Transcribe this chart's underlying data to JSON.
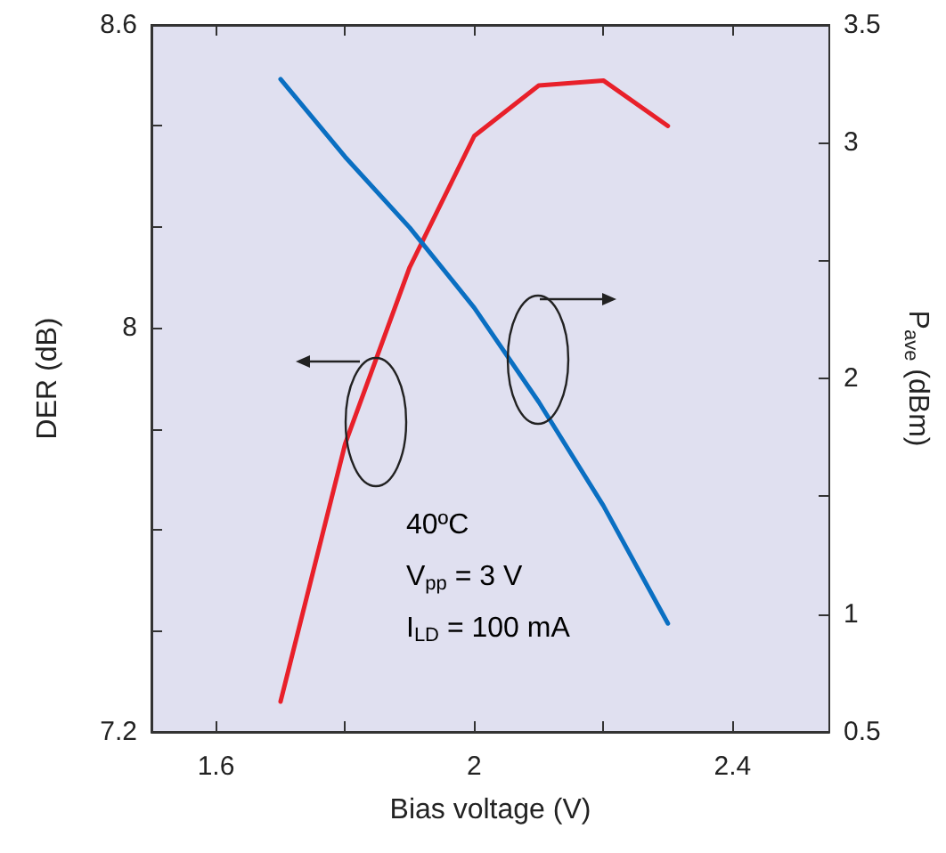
{
  "chart_data": {
    "type": "line",
    "xlabel": "Bias voltage (V)",
    "ylabel": "DER (dB)",
    "y2label": "P$_{ave}$ (dBm)",
    "x": [
      1.7,
      1.8,
      1.9,
      2.0,
      2.1,
      2.2,
      2.3
    ],
    "series": [
      {
        "color": "#e8202a",
        "values": [
          7.26,
          7.77,
          8.12,
          8.38,
          8.48,
          8.49,
          8.4
        ]
      },
      {
        "color": "#0a6fc2",
        "axis": "y2",
        "values": [
          3.27,
          2.94,
          2.64,
          2.3,
          1.9,
          1.46,
          0.96
        ]
      }
    ],
    "xlim": [
      1.5,
      2.55
    ],
    "xticks": [
      1.6,
      {
        "value": 1.8,
        "label": null
      },
      2,
      {
        "value": 2.2,
        "label": null
      },
      2.4
    ],
    "ylim": [
      7.2,
      8.6
    ],
    "yticks": [
      7.2,
      {
        "value": 7.4,
        "label": null
      },
      {
        "value": 7.6,
        "label": null
      },
      {
        "value": 7.8,
        "label": null
      },
      8,
      {
        "value": 8.2,
        "label": null
      },
      {
        "value": 8.4,
        "label": null
      },
      8.6
    ],
    "y2lim": [
      0.5,
      3.5
    ],
    "y2ticks": [
      0.5,
      1,
      {
        "value": 1.5,
        "label": null
      },
      2,
      {
        "value": 2.5,
        "label": null
      },
      3,
      3.5
    ],
    "annotations": [
      "40ºC",
      "V$_{pp}$ = 3 V",
      "I$_{LD}$ = 100 mA"
    ],
    "grid": false,
    "marker": "none",
    "line_style": "solid"
  }
}
